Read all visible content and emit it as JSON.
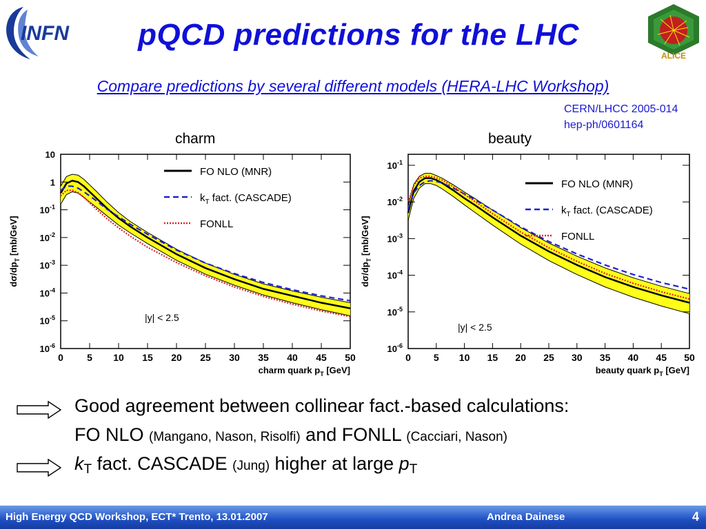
{
  "title": "pQCD predictions for the LHC",
  "subtitle": "Compare predictions by several different models (HERA-LHC Workshop)",
  "reference": [
    "CERN/LHCC 2005-014",
    "hep-ph/0601164"
  ],
  "logos": {
    "left": {
      "text": "INFN",
      "icon": "infn-logo"
    },
    "right": {
      "text": "ALICE",
      "icon": "alice-logo"
    }
  },
  "colors": {
    "title": "#1010d8",
    "mnr": "#000000",
    "cascade": "#2020d0",
    "fonll": "#e02020",
    "band": "#ffff00",
    "footer": "#1e4fc4"
  },
  "chart_data": [
    {
      "type": "line",
      "panel_label": "charm",
      "xlabel": "charm quark p",
      "xlabel_sub": "T",
      "xlabel_unit": "[GeV]",
      "ylabel": "dσ/dp",
      "ylabel_sub": "T",
      "ylabel_unit": "[mb/GeV]",
      "xlim": [
        0,
        50
      ],
      "ylim_log10": [
        -6,
        1
      ],
      "yscale": "log",
      "x_ticks": [
        0,
        5,
        10,
        15,
        20,
        25,
        30,
        35,
        40,
        45,
        50
      ],
      "y_ticks": [
        {
          "value": 1,
          "base": "10",
          "exp": ""
        },
        {
          "value": 0,
          "base": "1",
          "exp": ""
        },
        {
          "value": -1,
          "base": "10",
          "exp": "-1"
        },
        {
          "value": -2,
          "base": "10",
          "exp": "-2"
        },
        {
          "value": -3,
          "base": "10",
          "exp": "-3"
        },
        {
          "value": -4,
          "base": "10",
          "exp": "-4"
        },
        {
          "value": -5,
          "base": "10",
          "exp": "-5"
        },
        {
          "value": -6,
          "base": "10",
          "exp": "-6"
        }
      ],
      "annotation": "|y| < 2.5",
      "legend": [
        {
          "label": "FO NLO (MNR)",
          "style": "solid",
          "color": "#000000"
        },
        {
          "label": "k",
          "label_sub": "T",
          "label_rest": " fact. (CASCADE)",
          "style": "dashed",
          "color": "#2020d0"
        },
        {
          "label": "FONLL",
          "style": "dotted",
          "color": "#e02020"
        }
      ],
      "x": [
        0,
        1,
        2,
        3,
        4,
        5,
        6,
        8,
        10,
        12,
        15,
        20,
        25,
        30,
        35,
        40,
        45,
        50
      ],
      "series": [
        {
          "name": "FO NLO (MNR)",
          "style": "solid",
          "color": "#000000",
          "values_log10": [
            -0.4,
            -0.05,
            0.05,
            0.0,
            -0.15,
            -0.35,
            -0.55,
            -0.95,
            -1.3,
            -1.6,
            -2.0,
            -2.6,
            -3.1,
            -3.5,
            -3.85,
            -4.1,
            -4.35,
            -4.55
          ],
          "band_upper_log10": [
            -0.15,
            0.2,
            0.28,
            0.25,
            0.1,
            -0.1,
            -0.3,
            -0.72,
            -1.1,
            -1.42,
            -1.82,
            -2.42,
            -2.92,
            -3.33,
            -3.67,
            -3.92,
            -4.15,
            -4.35
          ],
          "band_lower_log10": [
            -0.8,
            -0.45,
            -0.35,
            -0.4,
            -0.55,
            -0.72,
            -0.88,
            -1.22,
            -1.55,
            -1.83,
            -2.22,
            -2.82,
            -3.32,
            -3.72,
            -4.07,
            -4.35,
            -4.6,
            -4.82
          ]
        },
        {
          "name": "kT fact. (CASCADE)",
          "style": "dashed",
          "color": "#2020d0",
          "values_log10": [
            -0.3,
            -0.15,
            -0.15,
            -0.22,
            -0.35,
            -0.5,
            -0.65,
            -0.98,
            -1.25,
            -1.52,
            -1.88,
            -2.45,
            -2.92,
            -3.3,
            -3.62,
            -3.88,
            -4.1,
            -4.28
          ]
        },
        {
          "name": "FONLL",
          "style": "dotted",
          "color": "#e02020",
          "values_log10": [
            -0.5,
            -0.3,
            -0.3,
            -0.38,
            -0.55,
            -0.75,
            -0.95,
            -1.32,
            -1.65,
            -1.95,
            -2.35,
            -2.9,
            -3.38,
            -3.78,
            -4.12,
            -4.4,
            -4.65,
            -4.85
          ]
        }
      ]
    },
    {
      "type": "line",
      "panel_label": "beauty",
      "xlabel": "beauty quark p",
      "xlabel_sub": "T",
      "xlabel_unit": "[GeV]",
      "ylabel": "dσ/dp",
      "ylabel_sub": "T",
      "ylabel_unit": "[mb/GeV]",
      "xlim": [
        0,
        50
      ],
      "ylim_log10": [
        -6,
        -0.7
      ],
      "yscale": "log",
      "x_ticks": [
        0,
        5,
        10,
        15,
        20,
        25,
        30,
        35,
        40,
        45,
        50
      ],
      "y_ticks": [
        {
          "value": -1,
          "base": "10",
          "exp": "-1"
        },
        {
          "value": -2,
          "base": "10",
          "exp": "-2"
        },
        {
          "value": -3,
          "base": "10",
          "exp": "-3"
        },
        {
          "value": -4,
          "base": "10",
          "exp": "-4"
        },
        {
          "value": -5,
          "base": "10",
          "exp": "-5"
        },
        {
          "value": -6,
          "base": "10",
          "exp": "-6"
        }
      ],
      "annotation": "|y| < 2.5",
      "legend": [
        {
          "label": "FO NLO (MNR)",
          "style": "solid",
          "color": "#000000"
        },
        {
          "label": "k",
          "label_sub": "T",
          "label_rest": " fact. (CASCADE)",
          "style": "dashed",
          "color": "#2020d0"
        },
        {
          "label": "FONLL",
          "style": "dotted",
          "color": "#e02020"
        }
      ],
      "x": [
        0,
        1,
        2,
        3,
        4,
        5,
        6,
        8,
        10,
        12,
        15,
        20,
        25,
        30,
        35,
        40,
        45,
        50
      ],
      "series": [
        {
          "name": "FO NLO (MNR)",
          "style": "solid",
          "color": "#000000",
          "values_log10": [
            -2.3,
            -1.7,
            -1.45,
            -1.35,
            -1.35,
            -1.4,
            -1.48,
            -1.68,
            -1.9,
            -2.1,
            -2.42,
            -2.92,
            -3.35,
            -3.72,
            -4.05,
            -4.32,
            -4.55,
            -4.75
          ],
          "band_upper_log10": [
            -2.1,
            -1.52,
            -1.3,
            -1.22,
            -1.22,
            -1.28,
            -1.35,
            -1.53,
            -1.73,
            -1.92,
            -2.22,
            -2.7,
            -3.12,
            -3.48,
            -3.8,
            -4.07,
            -4.3,
            -4.5
          ],
          "band_lower_log10": [
            -2.5,
            -1.9,
            -1.62,
            -1.5,
            -1.5,
            -1.55,
            -1.64,
            -1.85,
            -2.08,
            -2.3,
            -2.63,
            -3.15,
            -3.6,
            -3.98,
            -4.32,
            -4.6,
            -4.84,
            -5.05
          ]
        },
        {
          "name": "kT fact. (CASCADE)",
          "style": "dashed",
          "color": "#2020d0",
          "values_log10": [
            -2.2,
            -1.75,
            -1.55,
            -1.45,
            -1.42,
            -1.44,
            -1.48,
            -1.62,
            -1.78,
            -1.95,
            -2.22,
            -2.68,
            -3.08,
            -3.42,
            -3.72,
            -3.98,
            -4.2,
            -4.38
          ]
        },
        {
          "name": "FONLL",
          "style": "dotted",
          "color": "#e02020",
          "values_log10": [
            -2.0,
            -1.55,
            -1.35,
            -1.3,
            -1.3,
            -1.34,
            -1.4,
            -1.58,
            -1.8,
            -2.0,
            -2.32,
            -2.82,
            -3.25,
            -3.62,
            -3.95,
            -4.22,
            -4.45,
            -4.65
          ]
        }
      ]
    }
  ],
  "bullets": [
    {
      "text": "Good agreement between collinear fact.-based calculations:"
    },
    {
      "part1": "FO NLO ",
      "small1": "(Mangano, Nason, Risolfi)",
      "part2": " and FONLL ",
      "small2": "(Cacciari, Nason)"
    },
    {
      "italic1": "k",
      "sub1": "T",
      "part1": " fact. CASCADE ",
      "small1": "(Jung)",
      "part2": " higher at large ",
      "italic2": "p",
      "sub2": "T"
    }
  ],
  "footer": {
    "left": "High Energy QCD Workshop, ECT* Trento, 13.01.2007",
    "center": "Andrea Dainese",
    "page": "4"
  }
}
